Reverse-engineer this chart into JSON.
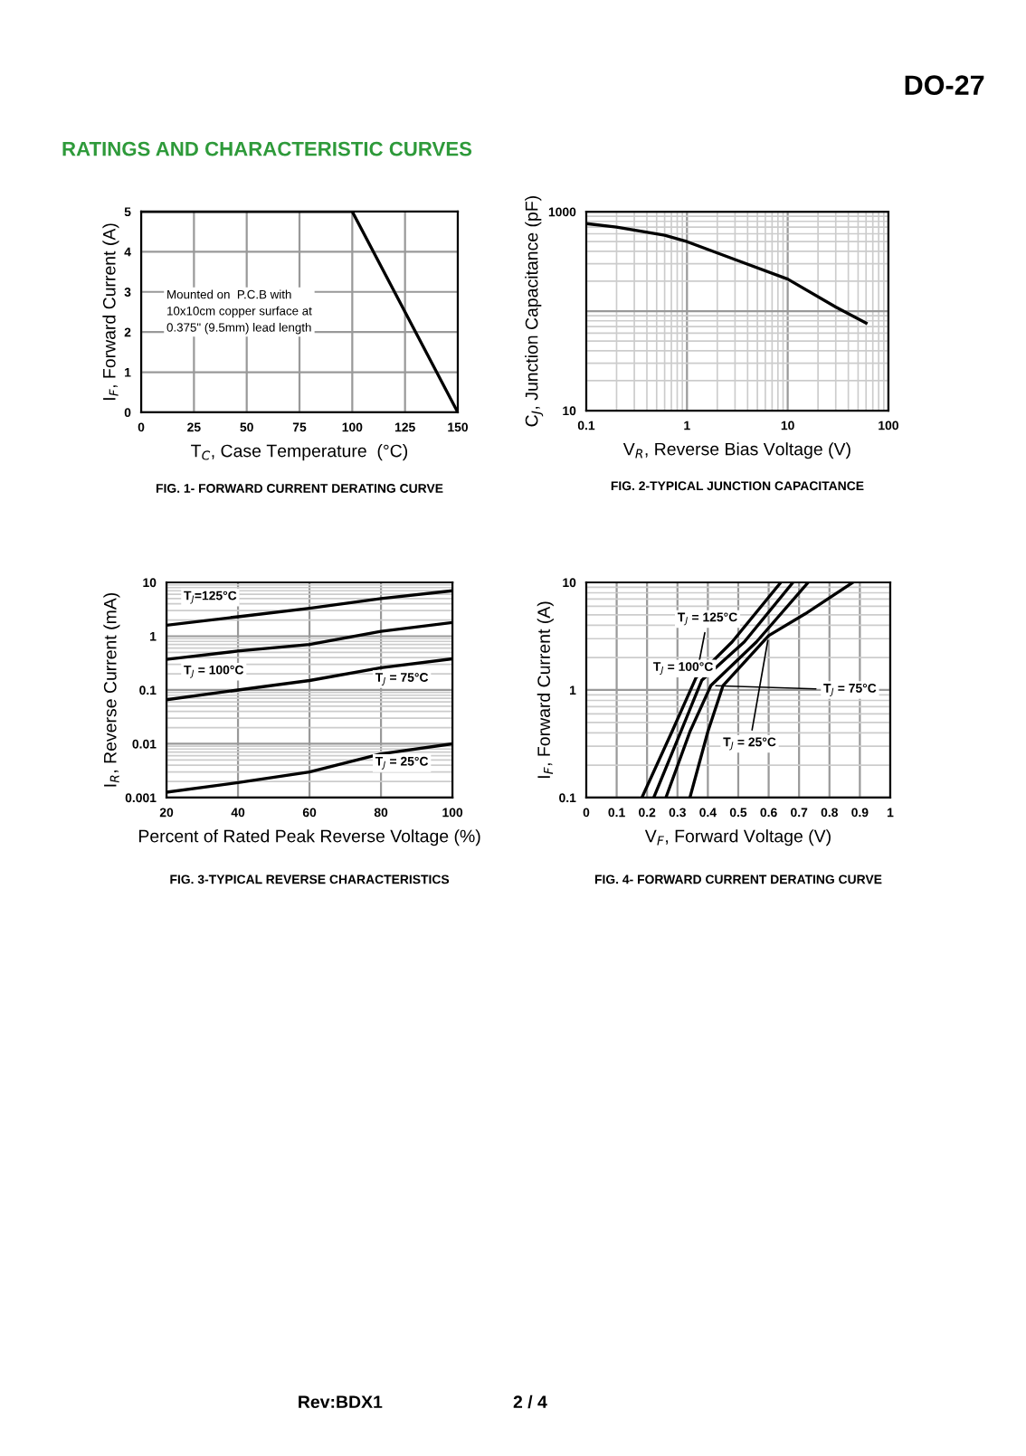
{
  "chart_data": [
    {
      "type": "line",
      "title": "FIG. 1- FORWARD CURRENT DERATING CURVE",
      "xlabel": "T$_{C}$, Case Temperature  (°C)",
      "ylabel": "I$_{F}$, Forward Current (A)",
      "x": [
        0,
        100,
        150
      ],
      "series": [
        {
          "color": "#000000",
          "values": [
            5,
            5,
            0
          ]
        }
      ],
      "xlim": [
        0,
        150
      ],
      "ylim": [
        0,
        5
      ],
      "xticks": [
        0,
        25,
        50,
        75,
        100,
        125,
        150
      ],
      "yticks": [
        0,
        1,
        2,
        3,
        4,
        5
      ],
      "grid": true,
      "annotations": [
        "Mounted on  P.C.B with\n10x10cm copper surface at\n0.375\" (9.5mm) lead length"
      ]
    },
    {
      "type": "line",
      "title": "FIG. 2-TYPICAL JUNCTION CAPACITANCE",
      "xlabel": "V$_{R}$, Reverse Bias Voltage (V)",
      "ylabel": "C$_{J}$, Junction Capacitance (pF)",
      "log": "xy",
      "x": [
        0.1,
        0.2,
        0.6,
        1,
        3,
        10,
        30,
        60
      ],
      "series": [
        {
          "color": "#000000",
          "values": [
            760,
            700,
            580,
            500,
            330,
            210,
            110,
            76
          ]
        }
      ],
      "xlim": [
        0.1,
        100
      ],
      "ylim": [
        10,
        1000
      ],
      "xticks": [
        0.1,
        1,
        10,
        100
      ],
      "yticks": [
        10,
        {
          "value": 100,
          "label": null
        },
        1000
      ],
      "grid": true
    },
    {
      "type": "line",
      "title": "FIG. 3-TYPICAL REVERSE CHARACTERISTICS",
      "xlabel": "Percent of Rated Peak Reverse Voltage (%)",
      "ylabel": "I$_{R}$, Reverse Current (mA)",
      "log": "y",
      "x": [
        20,
        40,
        60,
        80,
        100
      ],
      "series": [
        {
          "name": "T$_{J}$=125°C",
          "color": "#000000",
          "values": [
            1.6,
            2.3,
            3.3,
            5,
            7
          ]
        },
        {
          "name": "T$_{J}$ = 100°C",
          "color": "#000000",
          "values": [
            0.37,
            0.53,
            0.7,
            1.23,
            1.8
          ]
        },
        {
          "name": "T$_{J}$ = 75°C",
          "color": "#000000",
          "values": [
            0.066,
            0.1,
            0.15,
            0.26,
            0.38
          ]
        },
        {
          "name": "T$_{J}$ = 25°C",
          "color": "#000000",
          "values": [
            0.00126,
            0.0019,
            0.003,
            0.0065,
            0.01
          ]
        }
      ],
      "xlim": [
        20,
        100
      ],
      "ylim": [
        0.001,
        10
      ],
      "xticks": [
        20,
        40,
        60,
        80,
        100
      ],
      "yticks": [
        0.001,
        0.01,
        0.1,
        1,
        10
      ],
      "grid": true
    },
    {
      "type": "line",
      "title": "FIG. 4- FORWARD CURRENT DERATING CURVE",
      "xlabel": "V$_{F}$, Forward Voltage (V)",
      "ylabel": "I$_{F}$, Forward Current (A)",
      "log": "y",
      "series": [
        {
          "name": "T$_{J}$ = 125°C",
          "color": "#000000",
          "x": [
            0.183,
            0.282,
            0.361,
            0.48,
            0.64
          ],
          "values": [
            0.1,
            0.41,
            1.3,
            2.8,
            10
          ]
        },
        {
          "name": "T$_{J}$ = 100°C",
          "color": "#000000",
          "x": [
            0.222,
            0.311,
            0.38,
            0.52,
            0.68
          ],
          "values": [
            0.1,
            0.41,
            1.23,
            2.8,
            10
          ]
        },
        {
          "name": "T$_{J}$ = 75°C",
          "color": "#000000",
          "x": [
            0.262,
            0.341,
            0.41,
            0.56,
            0.73
          ],
          "values": [
            0.1,
            0.41,
            1.1,
            2.8,
            10
          ]
        },
        {
          "name": "T$_{J}$ = 25°C",
          "color": "#000000",
          "x": [
            0.341,
            0.4,
            0.45,
            0.6,
            0.72,
            0.877
          ],
          "values": [
            0.1,
            0.41,
            1.1,
            3.2,
            5.1,
            10
          ]
        }
      ],
      "xlim": [
        0,
        1
      ],
      "ylim": [
        0.1,
        10
      ],
      "xticks": [
        0,
        0.1,
        0.2,
        0.3,
        0.4,
        0.5,
        0.6,
        0.7,
        0.8,
        0.9,
        1
      ],
      "yticks": [
        0.1,
        1,
        10
      ],
      "grid": true
    },
    {
      "type": "other",
      "annotations": [
        "DO-27",
        "RATINGS AND CHARACTERISTIC CURVES",
        "Rev:BDX1",
        "2 / 4"
      ]
    }
  ]
}
